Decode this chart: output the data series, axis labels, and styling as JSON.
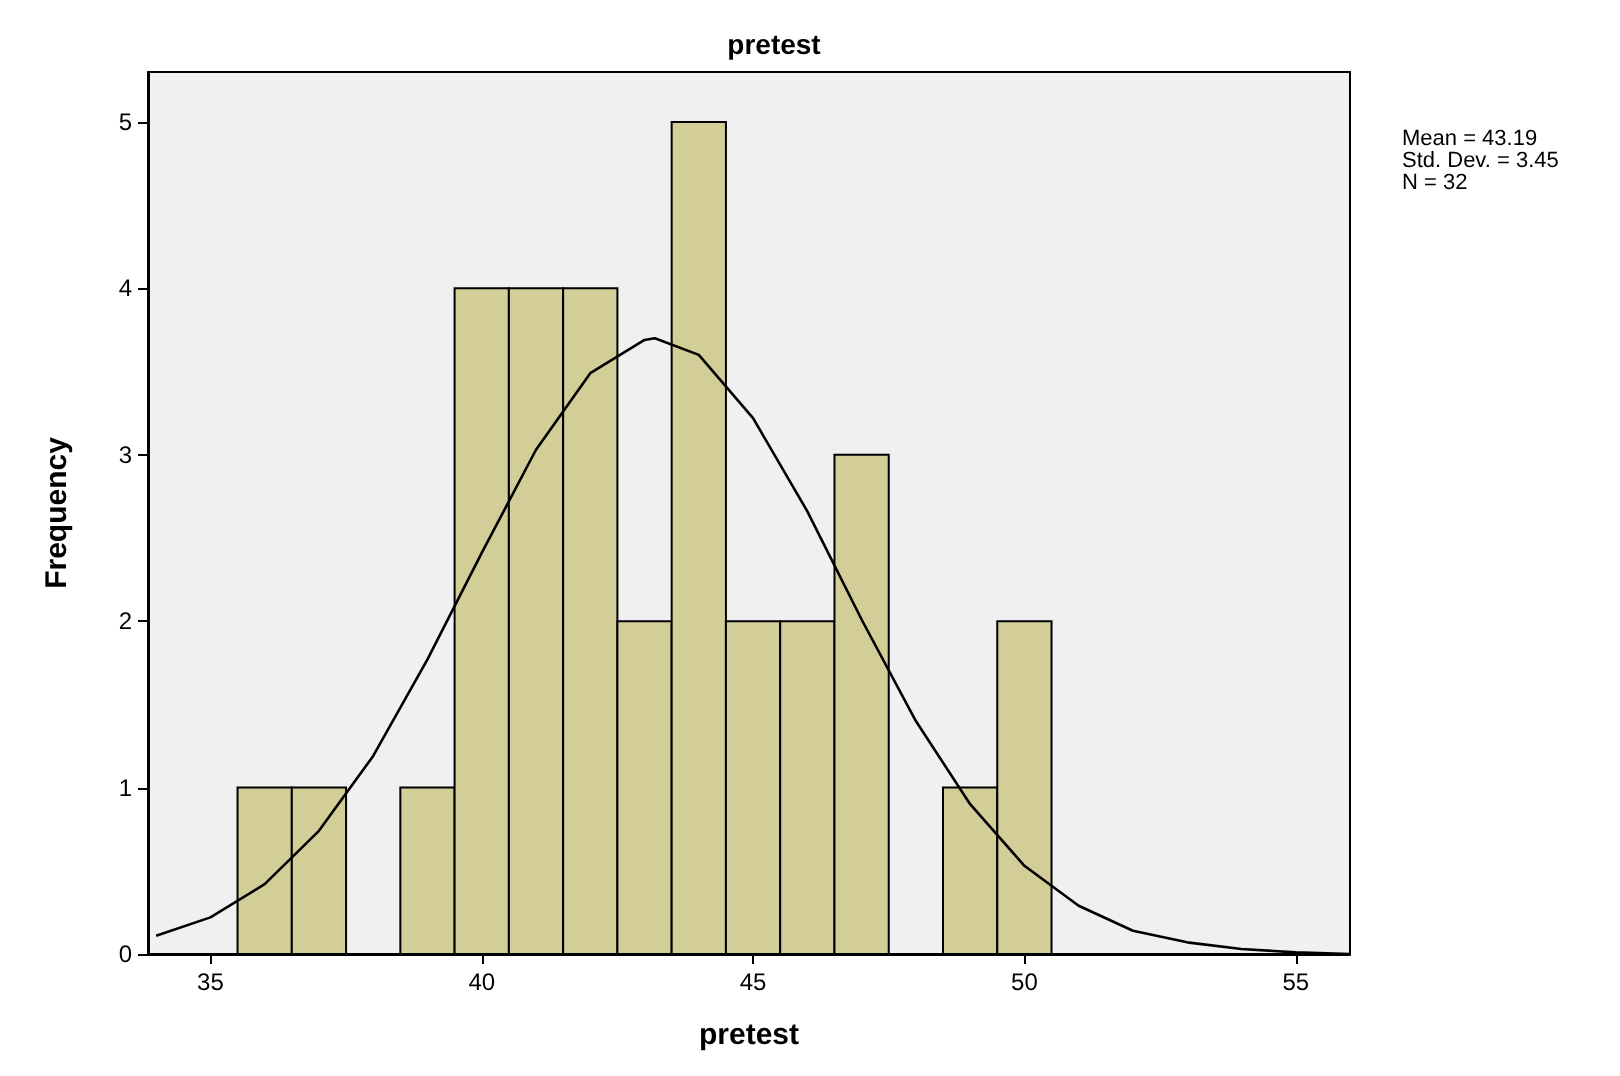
{
  "chart_data": {
    "type": "histogram",
    "title": "pretest",
    "xlabel": "pretest",
    "ylabel": "Frequency",
    "bins": [
      35.5,
      36.5,
      37.5,
      38.5,
      39.5,
      40.5,
      41.5,
      42.5,
      43.5,
      44.5,
      45.5,
      46.5,
      47.5,
      48.5,
      49.5,
      50.5
    ],
    "values": [
      1,
      1,
      0,
      1,
      4,
      4,
      4,
      2,
      5,
      2,
      2,
      3,
      0,
      1,
      2
    ],
    "color": "#d3ce98",
    "xlim": [
      33.85,
      56
    ],
    "xticks": [
      35,
      40,
      45,
      50,
      55
    ],
    "ylim": [
      0,
      5.3
    ],
    "yticks": [
      0,
      1,
      2,
      3,
      4,
      5
    ],
    "grid": false,
    "series": [
      {
        "type": "line",
        "color": "#000000",
        "marker": "none",
        "x": [
          34,
          35,
          36,
          37,
          38,
          39,
          40,
          41,
          42,
          43,
          43.19,
          44,
          45,
          46,
          47,
          48,
          49,
          50,
          51,
          52,
          53,
          54,
          55,
          56
        ],
        "values": [
          0.11,
          0.22,
          0.42,
          0.74,
          1.19,
          1.77,
          2.41,
          3.03,
          3.49,
          3.69,
          3.7,
          3.6,
          3.22,
          2.66,
          2.01,
          1.4,
          0.9,
          0.53,
          0.29,
          0.14,
          0.07,
          0.03,
          0.01,
          0
        ]
      }
    ],
    "annotations": [
      "Mean = 43.19",
      "Std. Dev. = 3.45",
      "N = 32"
    ]
  }
}
